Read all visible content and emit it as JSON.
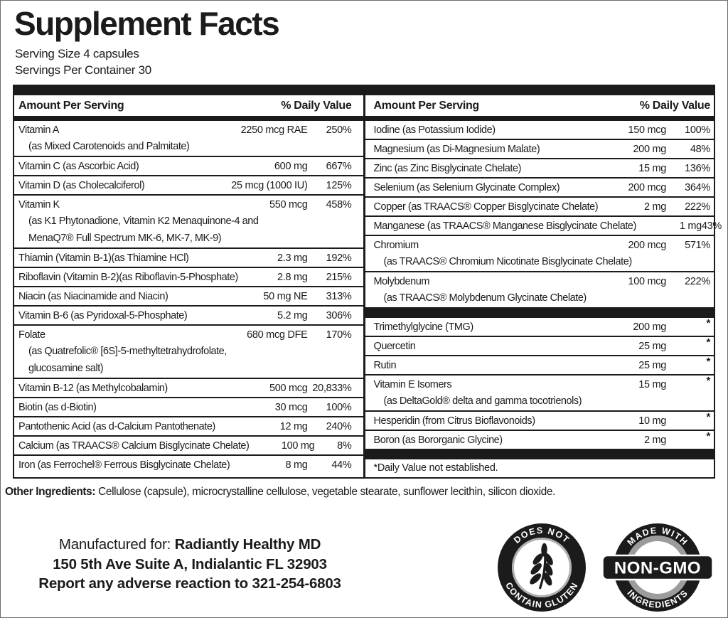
{
  "title": "Supplement Facts",
  "serving": {
    "size": "Serving Size 4 capsules",
    "per_container": "Servings Per Container 30"
  },
  "table": {
    "header": {
      "amount": "Amount Per Serving",
      "dv": "% Daily Value"
    },
    "left_rows": [
      {
        "name": "Vitamin A",
        "amount": "2250 mcg RAE",
        "dv": "250%",
        "subs": [
          "(as Mixed Carotenoids and Palmitate)"
        ]
      },
      {
        "name": "Vitamin C (as Ascorbic Acid)",
        "amount": "600 mg",
        "dv": "667%"
      },
      {
        "name": "Vitamin D (as Cholecalciferol)",
        "amount": "25 mcg (1000 IU)",
        "dv": "125%"
      },
      {
        "name": "Vitamin K",
        "amount": "550 mcg",
        "dv": "458%",
        "subs": [
          "(as K1 Phytonadione, Vitamin K2 Menaquinone-4 and",
          "MenaQ7® Full Spectrum MK-6, MK-7, MK-9)"
        ]
      },
      {
        "name": "Thiamin (Vitamin B-1)(as Thiamine HCl)",
        "amount": "2.3 mg",
        "dv": "192%"
      },
      {
        "name": "Riboflavin (Vitamin B-2)(as Riboflavin-5-Phosphate)",
        "amount": "2.8 mg",
        "dv": "215%"
      },
      {
        "name": "Niacin (as Niacinamide and Niacin)",
        "amount": "50 mg NE",
        "dv": "313%"
      },
      {
        "name": "Vitamin B-6 (as Pyridoxal-5-Phosphate)",
        "amount": "5.2 mg",
        "dv": "306%"
      },
      {
        "name": "Folate",
        "amount": "680 mcg DFE",
        "dv": "170%",
        "subs": [
          "(as Quatrefolic® [6S]-5-methyltetrahydrofolate,",
          "glucosamine salt)"
        ]
      },
      {
        "name": "Vitamin B-12 (as Methylcobalamin)",
        "amount": "500 mcg",
        "dv": "20,833%"
      },
      {
        "name": "Biotin (as d-Biotin)",
        "amount": "30 mcg",
        "dv": "100%"
      },
      {
        "name": "Pantothenic Acid (as d-Calcium Pantothenate)",
        "amount": "12 mg",
        "dv": "240%"
      },
      {
        "name": "Calcium (as TRAACS® Calcium Bisglycinate Chelate)",
        "amount": "100 mg",
        "dv": "8%"
      },
      {
        "name": "Iron (as Ferrochel® Ferrous Bisglycinate Chelate)",
        "amount": "8 mg",
        "dv": "44%"
      }
    ],
    "right_minerals": [
      {
        "name": "Iodine (as Potassium Iodide)",
        "amount": "150 mcg",
        "dv": "100%"
      },
      {
        "name": "Magnesium (as Di-Magnesium Malate)",
        "amount": "200 mg",
        "dv": "48%"
      },
      {
        "name": "Zinc (as Zinc Bisglycinate Chelate)",
        "amount": "15 mg",
        "dv": "136%"
      },
      {
        "name": "Selenium (as Selenium Glycinate Complex)",
        "amount": "200 mcg",
        "dv": "364%"
      },
      {
        "name": "Copper (as TRAACS® Copper Bisglycinate Chelate)",
        "amount": "2 mg",
        "dv": "222%"
      },
      {
        "name": "Manganese (as TRAACS® Manganese Bisglycinate Chelate)",
        "amount": "1 mg",
        "dv": "43%"
      },
      {
        "name": "Chromium",
        "amount": "200 mcg",
        "dv": "571%",
        "subs": [
          "(as TRAACS® Chromium Nicotinate Bisglycinate Chelate)"
        ]
      },
      {
        "name": "Molybdenum",
        "amount": "100 mcg",
        "dv": "222%",
        "subs": [
          "(as TRAACS® Molybdenum Glycinate Chelate)"
        ]
      }
    ],
    "right_botanicals": [
      {
        "name": "Trimethylglycine  (TMG)",
        "amount": "200 mg",
        "dv": "*"
      },
      {
        "name": "Quercetin",
        "amount": "25 mg",
        "dv": "*"
      },
      {
        "name": "Rutin",
        "amount": "25 mg",
        "dv": "*"
      },
      {
        "name": "Vitamin E Isomers",
        "amount": "15 mg",
        "dv": "*",
        "subs": [
          "(as DeltaGold® delta and gamma tocotrienols)"
        ]
      },
      {
        "name": "Hesperidin (from Citrus Bioflavonoids)",
        "amount": "10 mg",
        "dv": "*"
      },
      {
        "name": "Boron (as Bororganic Glycine)",
        "amount": "2 mg",
        "dv": "*"
      }
    ],
    "footnote": "*Daily Value not established."
  },
  "other_ingredients": {
    "label": "Other Ingredients:",
    "text": " Cellulose (capsule), microcrystalline cellulose, vegetable stearate, sunflower lecithin, silicon dioxide."
  },
  "manufacturer": {
    "prefix": "Manufactured for: ",
    "name": "Radiantly Healthy MD",
    "address": "150 5th Ave Suite A, Indialantic FL 32903",
    "report": "Report any adverse reaction to 321-254-6803"
  },
  "badges": {
    "gluten_free": {
      "top_text": "DOES NOT",
      "bottom_text": "CONTAIN GLUTEN"
    },
    "non_gmo": {
      "top_text": "MADE WITH",
      "bottom_text": "INGREDIENTS",
      "banner_text": "NON-GMO"
    }
  },
  "colors": {
    "ink": "#1b1b1b",
    "ring_gray": "#b0b0b0",
    "ring_gray_dark": "#9c9c9c"
  }
}
